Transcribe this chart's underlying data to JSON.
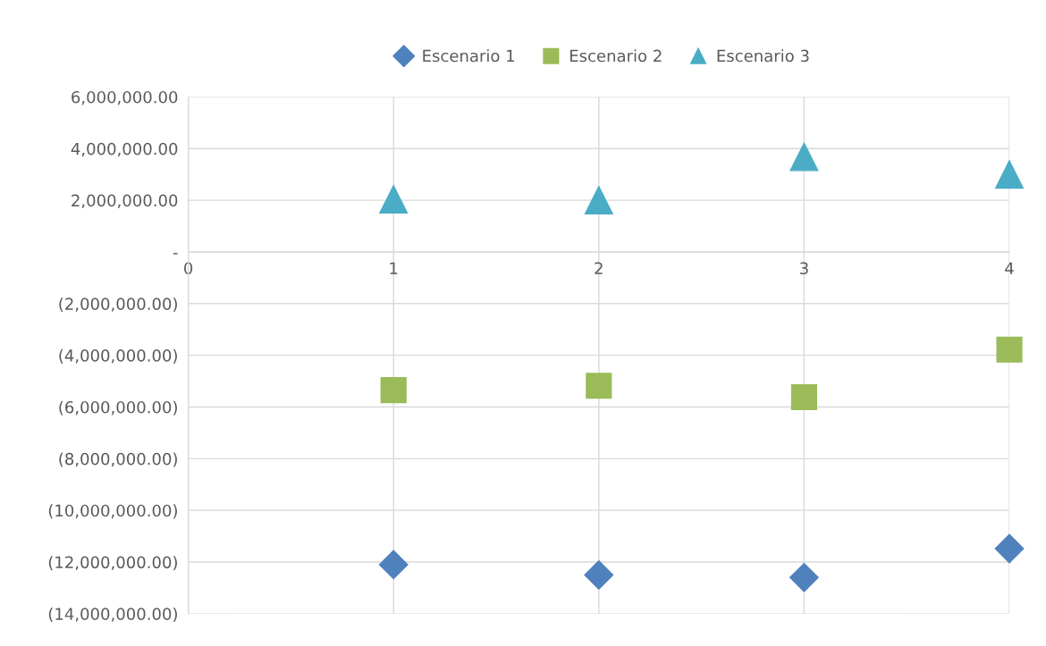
{
  "chart_data": {
    "type": "scatter",
    "x": [
      1,
      2,
      3,
      4
    ],
    "series": [
      {
        "name": "Escenario 1",
        "color": "#4f81bd",
        "marker": "diamond",
        "values": [
          -12100000,
          -12500000,
          -12600000,
          -11480000
        ]
      },
      {
        "name": "Escenario 2",
        "color": "#9bbb59",
        "marker": "square",
        "values": [
          -5350000,
          -5180000,
          -5620000,
          -3780000
        ]
      },
      {
        "name": "Escenario 3",
        "color": "#4bacc6",
        "marker": "triangle",
        "values": [
          2040000,
          2000000,
          3680000,
          3000000
        ]
      }
    ],
    "xlim": [
      0,
      4
    ],
    "xticks": [
      0,
      1,
      2,
      3,
      4
    ],
    "ylim": [
      -14000000,
      6000000
    ],
    "yticks": [
      {
        "value": -14000000,
        "label": "(14,000,000.00)"
      },
      {
        "value": -12000000,
        "label": "(12,000,000.00)"
      },
      {
        "value": -10000000,
        "label": "(10,000,000.00)"
      },
      {
        "value": -8000000,
        "label": "(8,000,000.00)"
      },
      {
        "value": -6000000,
        "label": "(6,000,000.00)"
      },
      {
        "value": -4000000,
        "label": "(4,000,000.00)"
      },
      {
        "value": -2000000,
        "label": "(2,000,000.00)"
      },
      {
        "value": 0,
        "label": "-"
      },
      {
        "value": 2000000,
        "label": "2,000,000.00"
      },
      {
        "value": 4000000,
        "label": "4,000,000.00"
      },
      {
        "value": 6000000,
        "label": "6,000,000.00"
      }
    ],
    "grid": true,
    "legend": "top"
  }
}
